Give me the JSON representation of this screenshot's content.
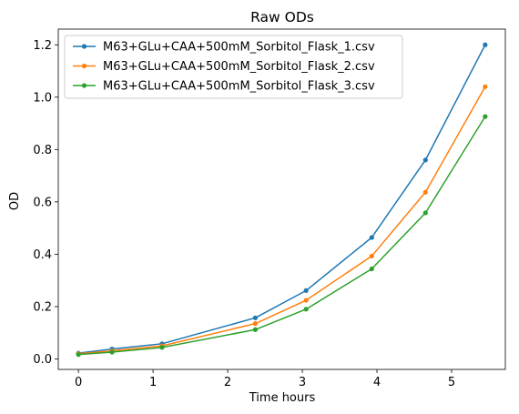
{
  "chart_data": {
    "type": "line",
    "title": "Raw ODs",
    "xlabel": "Time hours",
    "ylabel": "OD",
    "xlim": [
      -0.27,
      5.72
    ],
    "ylim": [
      -0.04,
      1.26
    ],
    "xticks": [
      0,
      1,
      2,
      3,
      4,
      5
    ],
    "yticks": [
      0.0,
      0.2,
      0.4,
      0.6,
      0.8,
      1.0,
      1.2
    ],
    "ytick_labels": [
      "0.0",
      "0.2",
      "0.4",
      "0.6",
      "0.8",
      "1.0",
      "1.2"
    ],
    "grid": false,
    "legend_position": "top-left",
    "x": [
      0,
      0.45,
      1.12,
      2.37,
      3.05,
      3.93,
      4.65,
      5.45
    ],
    "series": [
      {
        "name": "M63+GLu+CAA+500mM_Sorbitol_Flask_1.csv",
        "color": "#1f77b4",
        "values": [
          0.022,
          0.038,
          0.058,
          0.157,
          0.261,
          0.464,
          0.76,
          1.2
        ]
      },
      {
        "name": "M63+GLu+CAA+500mM_Sorbitol_Flask_2.csv",
        "color": "#ff7f0e",
        "values": [
          0.02,
          0.031,
          0.05,
          0.135,
          0.224,
          0.393,
          0.637,
          1.04
        ]
      },
      {
        "name": "M63+GLu+CAA+500mM_Sorbitol_Flask_3.csv",
        "color": "#2ca02c",
        "values": [
          0.017,
          0.026,
          0.044,
          0.112,
          0.19,
          0.344,
          0.558,
          0.926
        ]
      }
    ]
  }
}
